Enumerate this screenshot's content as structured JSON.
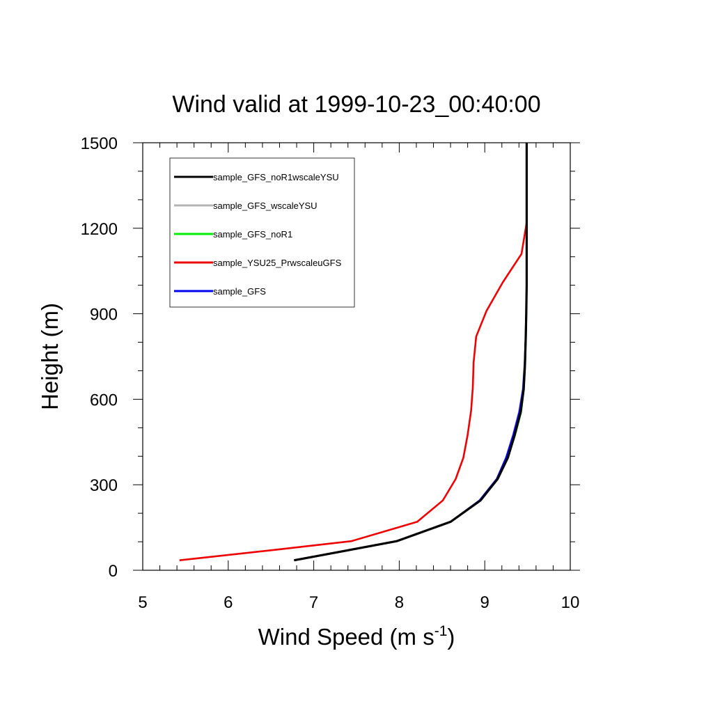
{
  "chart_data": {
    "type": "line",
    "title": "Wind valid at 1999-10-23_00:40:00",
    "xlabel": "Wind Speed (m s",
    "xlabel_sup": "-1",
    "xlabel_end": ")",
    "ylabel": "Height (m)",
    "xlim": [
      5,
      10
    ],
    "ylim": [
      0,
      1500
    ],
    "x_ticks": [
      5,
      6,
      7,
      8,
      9,
      10
    ],
    "y_ticks": [
      0,
      300,
      600,
      900,
      1200,
      1500
    ],
    "legend_position": "top-left",
    "series": [
      {
        "name": "sample_GFS_noR1wscaleYSU",
        "color": "#000000",
        "points": [
          [
            6.77,
            35
          ],
          [
            7.4,
            70
          ],
          [
            7.97,
            102
          ],
          [
            8.6,
            170
          ],
          [
            8.95,
            245
          ],
          [
            9.15,
            320
          ],
          [
            9.27,
            395
          ],
          [
            9.35,
            475
          ],
          [
            9.42,
            555
          ],
          [
            9.455,
            635
          ],
          [
            9.47,
            720
          ],
          [
            9.48,
            820
          ],
          [
            9.485,
            900
          ],
          [
            9.49,
            1000
          ],
          [
            9.49,
            1100
          ],
          [
            9.49,
            1200
          ],
          [
            9.49,
            1300
          ],
          [
            9.49,
            1500
          ]
        ]
      },
      {
        "name": "sample_GFS_wscaleYSU",
        "color": "#b4b4b4",
        "points": [
          [
            6.77,
            35
          ],
          [
            7.4,
            70
          ],
          [
            7.97,
            102
          ],
          [
            8.6,
            170
          ],
          [
            8.94,
            245
          ],
          [
            9.14,
            320
          ],
          [
            9.25,
            395
          ],
          [
            9.33,
            475
          ],
          [
            9.4,
            555
          ],
          [
            9.445,
            635
          ],
          [
            9.465,
            720
          ],
          [
            9.478,
            820
          ],
          [
            9.484,
            900
          ],
          [
            9.49,
            1000
          ],
          [
            9.49,
            1100
          ],
          [
            9.49,
            1200
          ],
          [
            9.49,
            1500
          ]
        ]
      },
      {
        "name": "sample_GFS_noR1",
        "color": "#00ee00",
        "points": [
          [
            6.77,
            35
          ],
          [
            7.4,
            70
          ],
          [
            7.97,
            102
          ],
          [
            8.6,
            170
          ],
          [
            8.95,
            245
          ],
          [
            9.15,
            320
          ],
          [
            9.27,
            395
          ],
          [
            9.355,
            475
          ],
          [
            9.425,
            555
          ],
          [
            9.457,
            635
          ],
          [
            9.472,
            720
          ],
          [
            9.481,
            820
          ],
          [
            9.486,
            900
          ],
          [
            9.49,
            1000
          ],
          [
            9.49,
            1100
          ],
          [
            9.49,
            1200
          ],
          [
            9.49,
            1500
          ]
        ]
      },
      {
        "name": "sample_YSU25_PrwscaleuGFS",
        "color": "#ee0000",
        "points": [
          [
            5.43,
            35
          ],
          [
            6.5,
            70
          ],
          [
            7.44,
            102
          ],
          [
            8.21,
            170
          ],
          [
            8.51,
            245
          ],
          [
            8.66,
            320
          ],
          [
            8.75,
            395
          ],
          [
            8.8,
            475
          ],
          [
            8.84,
            560
          ],
          [
            8.86,
            640
          ],
          [
            8.87,
            730
          ],
          [
            8.9,
            820
          ],
          [
            9.02,
            910
          ],
          [
            9.21,
            1010
          ],
          [
            9.43,
            1110
          ],
          [
            9.49,
            1220
          ]
        ]
      },
      {
        "name": "sample_GFS",
        "color": "#0000ee",
        "points": [
          [
            6.77,
            35
          ],
          [
            7.4,
            70
          ],
          [
            7.97,
            102
          ],
          [
            8.6,
            170
          ],
          [
            8.94,
            245
          ],
          [
            9.14,
            320
          ],
          [
            9.25,
            395
          ],
          [
            9.335,
            475
          ],
          [
            9.405,
            555
          ],
          [
            9.448,
            635
          ],
          [
            9.467,
            720
          ],
          [
            9.479,
            820
          ],
          [
            9.485,
            900
          ],
          [
            9.49,
            1000
          ],
          [
            9.49,
            1100
          ],
          [
            9.49,
            1200
          ],
          [
            9.49,
            1500
          ]
        ]
      }
    ]
  }
}
